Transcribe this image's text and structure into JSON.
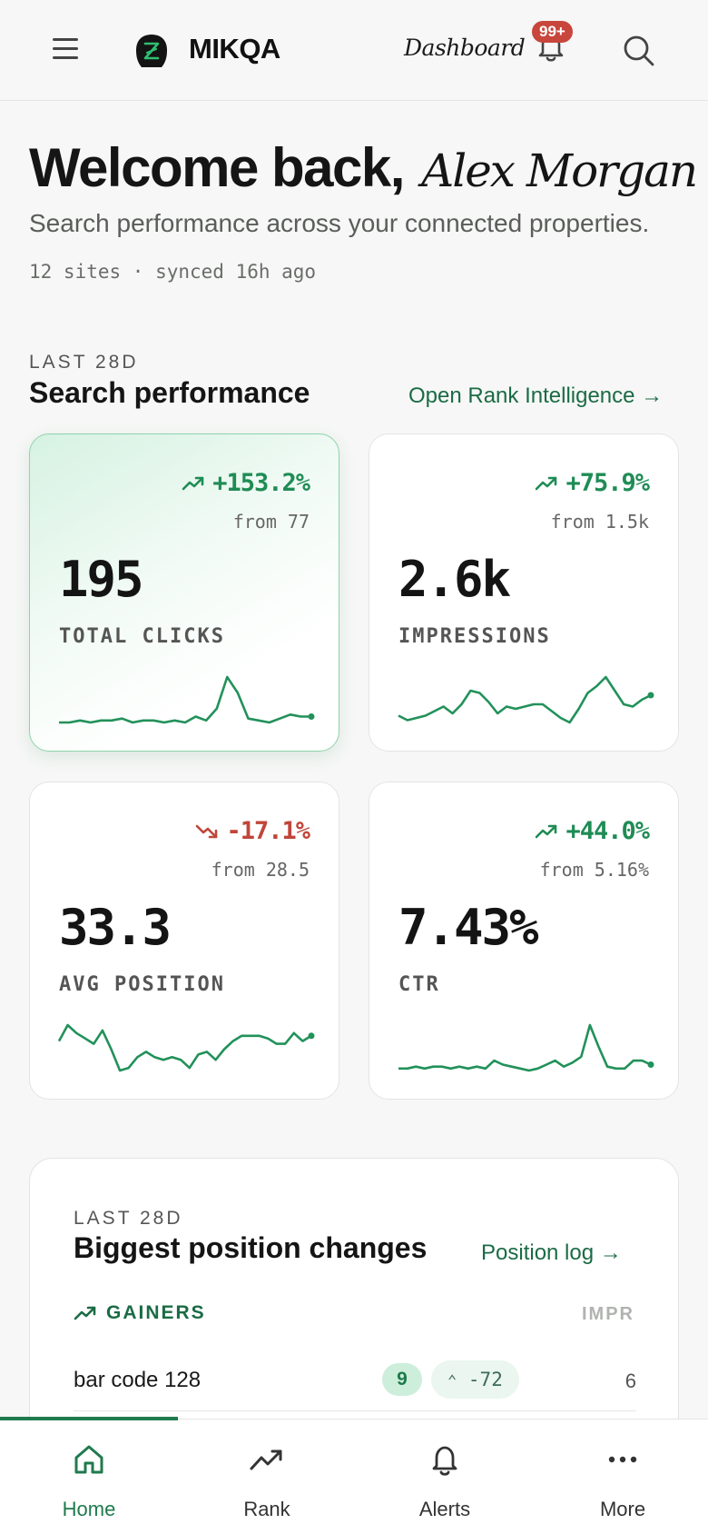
{
  "header": {
    "brand": "MIKQA",
    "nav_link": "Dashboard",
    "notification_badge": "99+",
    "icons": {
      "menu": "hamburger-menu-icon",
      "logo": "brand-logo-icon",
      "bell": "bell-icon",
      "search": "search-icon"
    }
  },
  "welcome": {
    "greeting": "Welcome back,",
    "name": "Alex Morgan",
    "subtitle": "Search performance across your connected properties.",
    "meta": "12 sites · synced 16h ago"
  },
  "performance": {
    "eyebrow": "LAST 28D",
    "title": "Search performance",
    "link": "Open Rank Intelligence →",
    "cards": [
      {
        "delta": "+153.2%",
        "direction": "up",
        "from": "from 77",
        "value": "195",
        "label": "TOTAL CLICKS",
        "active": true,
        "spark": [
          3,
          3,
          4,
          3,
          4,
          4,
          5,
          3,
          4,
          4,
          3,
          4,
          3,
          6,
          4,
          10,
          26,
          18,
          5,
          4,
          3,
          5,
          7,
          6,
          6
        ]
      },
      {
        "delta": "+75.9%",
        "direction": "up",
        "from": "from 1.5k",
        "value": "2.6k",
        "label": "IMPRESSIONS",
        "active": false,
        "spark": [
          8,
          6,
          7,
          8,
          10,
          12,
          9,
          13,
          19,
          18,
          14,
          9,
          12,
          11,
          12,
          13,
          13,
          10,
          7,
          5,
          11,
          18,
          21,
          25,
          19,
          13,
          12,
          15,
          17
        ]
      },
      {
        "delta": "-17.1%",
        "direction": "down",
        "from": "from 28.5",
        "value": "33.3",
        "label": "AVG POSITION",
        "active": false,
        "spark": [
          18,
          24,
          21,
          19,
          17,
          22,
          15,
          7,
          8,
          12,
          14,
          12,
          11,
          12,
          11,
          8,
          13,
          14,
          11,
          15,
          18,
          20,
          20,
          20,
          19,
          17,
          17,
          21,
          18,
          20
        ]
      },
      {
        "delta": "+44.0%",
        "direction": "up",
        "from": "from 5.16%",
        "value": "7.43%",
        "label": "CTR",
        "active": false,
        "spark": [
          5,
          5,
          6,
          5,
          6,
          6,
          5,
          6,
          5,
          6,
          5,
          9,
          7,
          6,
          5,
          4,
          5,
          7,
          9,
          6,
          8,
          11,
          27,
          16,
          6,
          5,
          5,
          9,
          9,
          7
        ]
      }
    ]
  },
  "position_changes": {
    "eyebrow": "LAST 28D",
    "title": "Biggest position changes",
    "link": "Position log →",
    "gainers_label": "GAINERS",
    "impr_header": "IMPR",
    "rows": [
      {
        "query": "bar code 128",
        "position": "9",
        "change": "-72",
        "impr": "6"
      }
    ]
  },
  "bottom_nav": {
    "items": [
      {
        "label": "Home",
        "icon": "home-icon",
        "active": true
      },
      {
        "label": "Rank",
        "icon": "trending-up-icon",
        "active": false
      },
      {
        "label": "Alerts",
        "icon": "bell-icon",
        "active": false
      },
      {
        "label": "More",
        "icon": "more-dots-icon",
        "active": false
      }
    ]
  },
  "colors": {
    "accent": "#1f7a4d",
    "positive": "#1f8c55",
    "negative": "#c0453a",
    "badge": "#c8463c"
  }
}
